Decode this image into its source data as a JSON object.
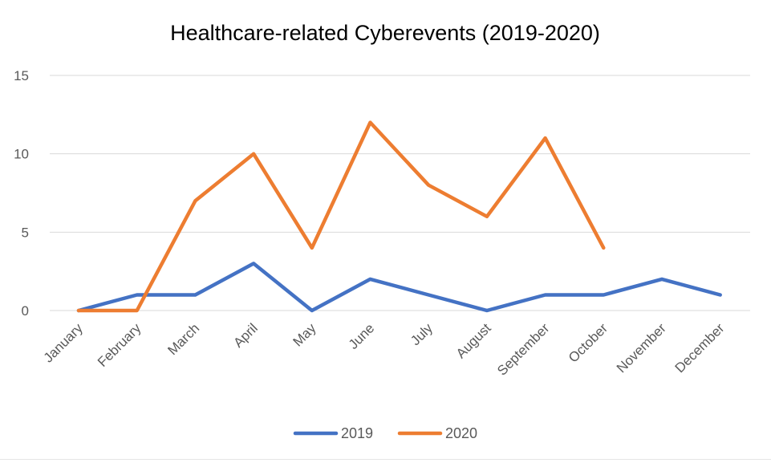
{
  "chart_data": {
    "type": "line",
    "title": "Healthcare-related Cyberevents (2019-2020)",
    "xlabel": "",
    "ylabel": "",
    "categories": [
      "January",
      "February",
      "March",
      "April",
      "May",
      "June",
      "July",
      "August",
      "September",
      "October",
      "November",
      "December"
    ],
    "ylim": [
      0,
      15
    ],
    "yticks": [
      0,
      5,
      10,
      15
    ],
    "grid": true,
    "legend_position": "bottom",
    "series": [
      {
        "name": "2019",
        "color": "#4472c4",
        "values": [
          0,
          1,
          1,
          3,
          0,
          2,
          1,
          0,
          1,
          1,
          2,
          1
        ]
      },
      {
        "name": "2020",
        "color": "#ed7d31",
        "values": [
          0,
          0,
          7,
          10,
          4,
          12,
          8,
          6,
          11,
          4,
          null,
          null
        ]
      }
    ]
  }
}
